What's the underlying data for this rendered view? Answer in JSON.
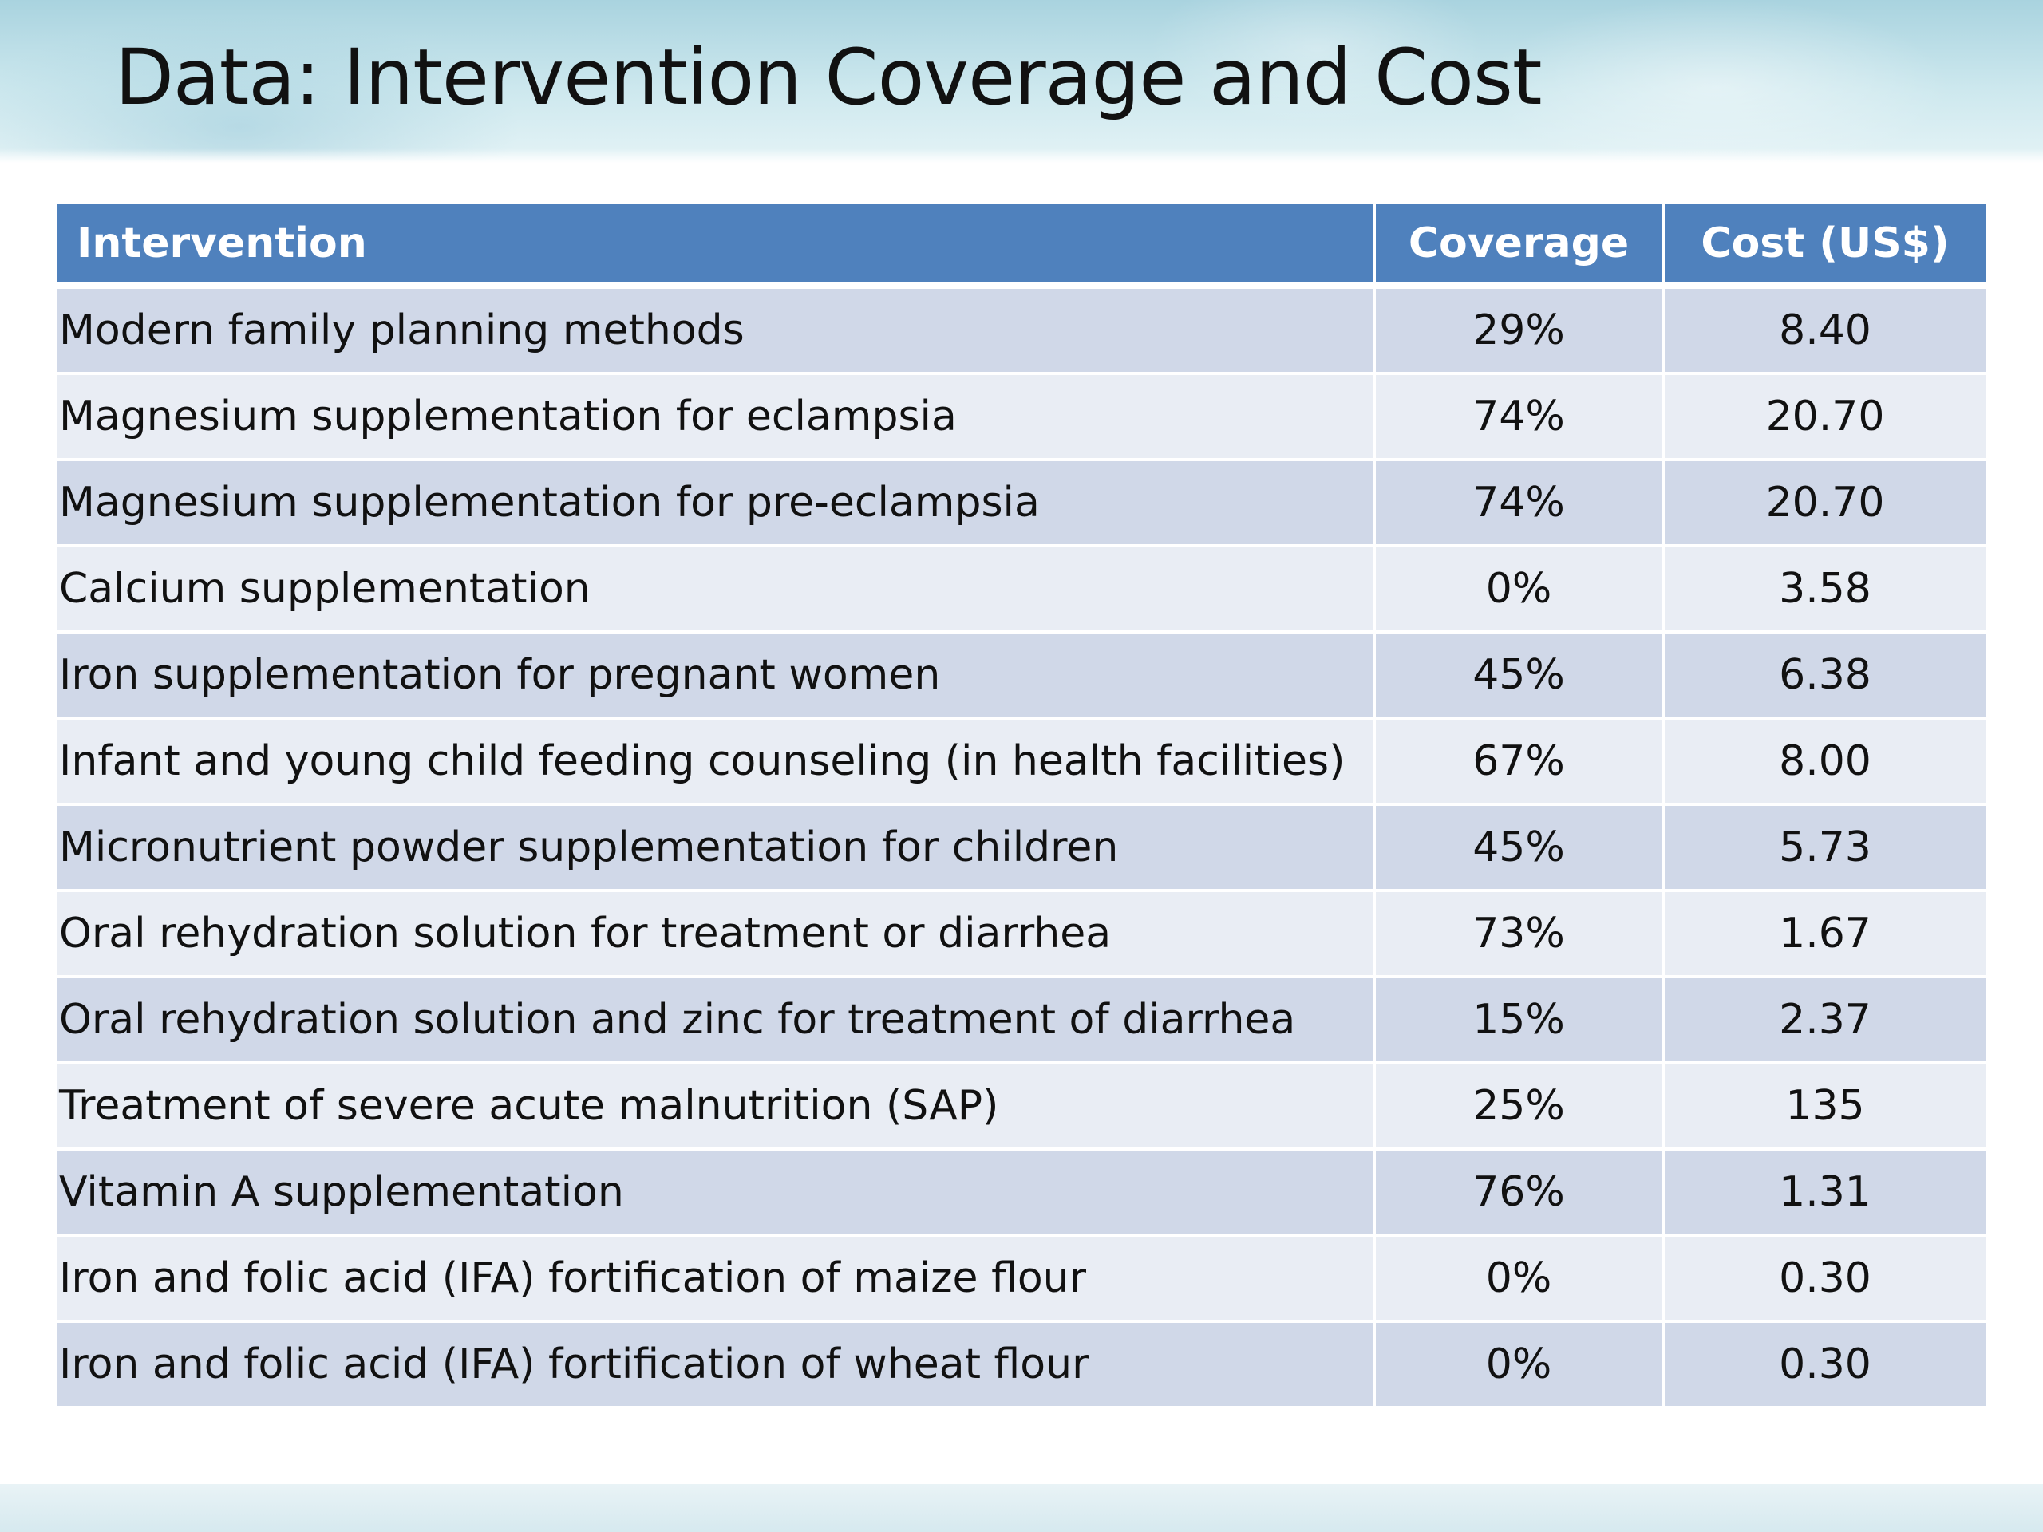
{
  "slide": {
    "title": "Data: Intervention Coverage and Cost"
  },
  "table": {
    "headers": {
      "intervention": "Intervention",
      "coverage": "Coverage",
      "cost": "Cost (US$)"
    },
    "rows": [
      {
        "intervention": "Modern family planning methods",
        "coverage": "29%",
        "cost": "8.40"
      },
      {
        "intervention": "Magnesium supplementation for eclampsia",
        "coverage": "74%",
        "cost": "20.70"
      },
      {
        "intervention": "Magnesium supplementation for pre-eclampsia",
        "coverage": "74%",
        "cost": "20.70"
      },
      {
        "intervention": "Calcium supplementation",
        "coverage": "0%",
        "cost": "3.58"
      },
      {
        "intervention": "Iron supplementation for pregnant women",
        "coverage": "45%",
        "cost": "6.38"
      },
      {
        "intervention": "Infant and young child feeding counseling (in health facilities)",
        "coverage": "67%",
        "cost": "8.00"
      },
      {
        "intervention": "Micronutrient powder supplementation for children",
        "coverage": "45%",
        "cost": "5.73"
      },
      {
        "intervention": "Oral rehydration solution for treatment or diarrhea",
        "coverage": "73%",
        "cost": "1.67"
      },
      {
        "intervention": "Oral rehydration solution and zinc for treatment of diarrhea",
        "coverage": "15%",
        "cost": "2.37"
      },
      {
        "intervention": "Treatment of severe acute malnutrition (SAP)",
        "coverage": "25%",
        "cost": "135"
      },
      {
        "intervention": "Vitamin A supplementation",
        "coverage": "76%",
        "cost": "1.31"
      },
      {
        "intervention": "Iron and folic acid (IFA) fortification of maize flour",
        "coverage": "0%",
        "cost": "0.30"
      },
      {
        "intervention": "Iron and folic acid (IFA) fortification of wheat flour",
        "coverage": "0%",
        "cost": "0.30"
      }
    ]
  }
}
